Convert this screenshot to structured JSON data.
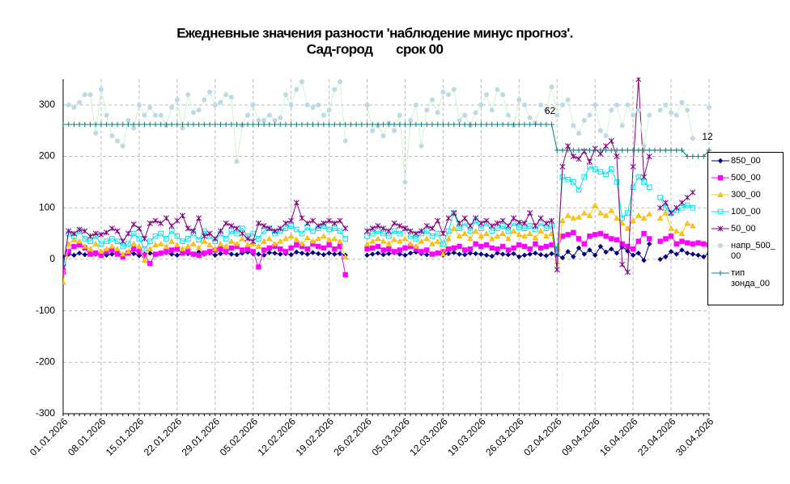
{
  "chart_data": {
    "type": "line",
    "title": "Ежедневные значения разности 'наблюдение минус прогноз'.",
    "subtitle": "Сад-город       срок 00",
    "annotations": [
      "62",
      "12"
    ],
    "categories": [
      "01.01.2026",
      null,
      null,
      null,
      null,
      null,
      null,
      "08.01.2026",
      null,
      null,
      null,
      null,
      null,
      null,
      "15.01.2026",
      null,
      null,
      null,
      null,
      null,
      null,
      "22.01.2026",
      null,
      null,
      null,
      null,
      null,
      null,
      "29.01.2026",
      null,
      null,
      null,
      null,
      null,
      null,
      "05.02.2026",
      null,
      null,
      null,
      null,
      null,
      null,
      "12.02.2026",
      null,
      null,
      null,
      null,
      null,
      null,
      "19.02.2026",
      null,
      null,
      null,
      null,
      null,
      null,
      "26.02.2026",
      null,
      null,
      null,
      null,
      null,
      null,
      "05.03.2026",
      null,
      null,
      null,
      null,
      null,
      null,
      "12.03.2026",
      null,
      null,
      null,
      null,
      null,
      null,
      "19.03.2026",
      null,
      null,
      null,
      null,
      null,
      null,
      "26.03.2026",
      null,
      null,
      null,
      null,
      null,
      null,
      "02.04.2026",
      null,
      null,
      null,
      null,
      null,
      null,
      "09.04.2026",
      null,
      null,
      null,
      null,
      null,
      null,
      "16.04.2026",
      null,
      null,
      null,
      null,
      null,
      null,
      "23.04.2026",
      null,
      null,
      null,
      null,
      null,
      null,
      "30.04.2026"
    ],
    "ylim": [
      -300,
      350
    ],
    "yticks": [
      -300,
      -200,
      -100,
      0,
      100,
      200,
      300
    ],
    "grid": true,
    "series": [
      {
        "name": "850_00",
        "color": "#000080",
        "marker": "diamond",
        "values": [
          5,
          10,
          8,
          12,
          9,
          11,
          10,
          13,
          8,
          10,
          12,
          9,
          14,
          11,
          7,
          10,
          12,
          9,
          11,
          13,
          10,
          8,
          12,
          11,
          9,
          14,
          10,
          12,
          8,
          11,
          13,
          10,
          9,
          12,
          14,
          11,
          10,
          8,
          13,
          12,
          10,
          11,
          9,
          14,
          12,
          10,
          13,
          11,
          9,
          12,
          10,
          11,
          8,
          null,
          null,
          null,
          8,
          10,
          12,
          9,
          11,
          13,
          10,
          8,
          12,
          14,
          11,
          9,
          10,
          12,
          8,
          11,
          13,
          10,
          9,
          12,
          11,
          10,
          8,
          6,
          12,
          10,
          9,
          11,
          5,
          8,
          10,
          12,
          9,
          7,
          11,
          8,
          3,
          15,
          5,
          22,
          10,
          18,
          8,
          25,
          14,
          20,
          12,
          24,
          16,
          8,
          12,
          -2,
          30,
          null,
          0,
          5,
          15,
          10,
          18,
          12,
          10,
          8,
          5,
          12
        ]
      },
      {
        "name": "500_00",
        "color": "#ff00ff",
        "marker": "square",
        "values": [
          -25,
          15,
          25,
          28,
          22,
          10,
          12,
          8,
          15,
          18,
          10,
          5,
          12,
          20,
          15,
          8,
          -8,
          10,
          12,
          15,
          18,
          20,
          12,
          15,
          10,
          8,
          12,
          15,
          18,
          20,
          15,
          22,
          25,
          18,
          20,
          15,
          -15,
          18,
          22,
          25,
          20,
          15,
          22,
          28,
          25,
          20,
          30,
          25,
          22,
          28,
          20,
          25,
          -30,
          null,
          null,
          null,
          20,
          22,
          25,
          18,
          20,
          15,
          18,
          22,
          25,
          20,
          15,
          18,
          10,
          12,
          15,
          20,
          22,
          25,
          18,
          20,
          30,
          25,
          28,
          22,
          20,
          25,
          18,
          22,
          28,
          25,
          20,
          30,
          22,
          25,
          28,
          20,
          45,
          48,
          52,
          40,
          30,
          45,
          48,
          50,
          45,
          40,
          38,
          30,
          25,
          20,
          35,
          50,
          40,
          null,
          35,
          40,
          45,
          30,
          35,
          32,
          30,
          32,
          30,
          28
        ]
      },
      {
        "name": "300_00",
        "color": "#ffcc00",
        "marker": "triangle",
        "values": [
          -45,
          30,
          38,
          35,
          25,
          20,
          30,
          15,
          20,
          25,
          20,
          10,
          15,
          30,
          25,
          -2,
          20,
          28,
          30,
          25,
          35,
          28,
          20,
          25,
          30,
          22,
          35,
          28,
          20,
          30,
          25,
          35,
          30,
          40,
          28,
          30,
          25,
          35,
          40,
          30,
          35,
          40,
          45,
          38,
          30,
          42,
          35,
          40,
          45,
          38,
          40,
          35,
          5,
          null,
          null,
          null,
          30,
          35,
          40,
          35,
          30,
          38,
          35,
          40,
          30,
          25,
          35,
          40,
          30,
          35,
          10,
          40,
          60,
          45,
          50,
          40,
          55,
          45,
          50,
          40,
          45,
          50,
          40,
          55,
          48,
          45,
          50,
          42,
          55,
          45,
          50,
          -5,
          75,
          85,
          80,
          82,
          90,
          85,
          105,
          90,
          85,
          95,
          80,
          70,
          60,
          75,
          85,
          80,
          88,
          null,
          80,
          90,
          60,
          55,
          50,
          70,
          65,
          null,
          null,
          null
        ]
      },
      {
        "name": "100_00",
        "color": "#00e5ee",
        "marker": "open-square",
        "values": [
          -10,
          50,
          45,
          55,
          40,
          35,
          45,
          30,
          35,
          40,
          35,
          25,
          30,
          50,
          40,
          20,
          35,
          45,
          50,
          40,
          55,
          45,
          35,
          40,
          50,
          38,
          55,
          45,
          35,
          50,
          40,
          55,
          50,
          60,
          45,
          50,
          40,
          55,
          60,
          50,
          55,
          60,
          65,
          58,
          50,
          62,
          55,
          60,
          65,
          58,
          60,
          55,
          40,
          null,
          null,
          null,
          45,
          50,
          55,
          50,
          45,
          55,
          50,
          60,
          45,
          40,
          50,
          55,
          45,
          50,
          30,
          55,
          90,
          60,
          70,
          55,
          75,
          60,
          70,
          55,
          60,
          65,
          55,
          70,
          62,
          60,
          65,
          58,
          70,
          60,
          65,
          10,
          160,
          155,
          150,
          135,
          160,
          180,
          175,
          170,
          165,
          175,
          150,
          80,
          90,
          140,
          160,
          150,
          140,
          null,
          120,
          100,
          90,
          95,
          100,
          105,
          100,
          null,
          null,
          null
        ]
      },
      {
        "name": "50_00",
        "color": "#800080",
        "marker": "star",
        "values": [
          -15,
          55,
          50,
          58,
          55,
          45,
          50,
          48,
          52,
          60,
          55,
          35,
          50,
          68,
          60,
          40,
          70,
          75,
          70,
          80,
          65,
          75,
          85,
          60,
          55,
          80,
          45,
          50,
          40,
          55,
          70,
          65,
          60,
          50,
          40,
          35,
          70,
          65,
          60,
          55,
          60,
          70,
          75,
          110,
          80,
          70,
          75,
          65,
          70,
          75,
          70,
          75,
          60,
          null,
          null,
          null,
          55,
          60,
          65,
          60,
          55,
          70,
          65,
          60,
          55,
          50,
          55,
          65,
          60,
          75,
          50,
          80,
          90,
          70,
          80,
          65,
          80,
          70,
          75,
          65,
          70,
          75,
          65,
          80,
          72,
          70,
          90,
          65,
          80,
          70,
          75,
          -20,
          180,
          220,
          200,
          195,
          210,
          190,
          215,
          205,
          220,
          230,
          200,
          -10,
          -25,
          180,
          350,
          160,
          200,
          null,
          100,
          110,
          90,
          100,
          110,
          120,
          130,
          null,
          null,
          null
        ]
      },
      {
        "name": "напр_500_00",
        "color": "#bcd9e6",
        "line_color": "#ccf5cc",
        "marker": "circle",
        "values": [
          null,
          300,
          295,
          305,
          320,
          320,
          245,
          330,
          280,
          240,
          230,
          220,
          270,
          255,
          300,
          280,
          295,
          280,
          280,
          260,
          295,
          310,
          255,
          320,
          285,
          290,
          310,
          325,
          300,
          305,
          320,
          315,
          190,
          260,
          280,
          300,
          270,
          270,
          280,
          270,
          275,
          320,
          300,
          330,
          345,
          300,
          295,
          300,
          280,
          290,
          330,
          345,
          230,
          null,
          null,
          null,
          300,
          250,
          260,
          240,
          265,
          250,
          280,
          150,
          270,
          300,
          220,
          290,
          310,
          285,
          325,
          320,
          330,
          270,
          280,
          260,
          285,
          300,
          320,
          290,
          330,
          320,
          280,
          260,
          310,
          300,
          275,
          265,
          300,
          290,
          335,
          280,
          300,
          310,
          260,
          245,
          270,
          280,
          300,
          250,
          240,
          290,
          300,
          260,
          300,
          280,
          290,
          220,
          280,
          null,
          290,
          300,
          285,
          280,
          305,
          290,
          235,
          null,
          null,
          295
        ]
      },
      {
        "name": "тип зонда_00",
        "color": "#008080",
        "marker": "plus",
        "values": [
          262,
          262,
          262,
          262,
          262,
          262,
          262,
          262,
          262,
          262,
          262,
          262,
          262,
          262,
          262,
          262,
          262,
          262,
          262,
          262,
          262,
          262,
          262,
          262,
          262,
          262,
          262,
          262,
          262,
          262,
          262,
          262,
          262,
          262,
          262,
          262,
          262,
          262,
          262,
          262,
          262,
          262,
          262,
          262,
          262,
          262,
          262,
          262,
          262,
          262,
          262,
          262,
          262,
          262,
          262,
          262,
          262,
          262,
          262,
          262,
          262,
          262,
          262,
          262,
          262,
          262,
          262,
          262,
          262,
          262,
          262,
          262,
          262,
          262,
          262,
          262,
          262,
          262,
          262,
          262,
          262,
          262,
          262,
          262,
          262,
          262,
          262,
          262,
          262,
          262,
          262,
          212,
          212,
          212,
          212,
          212,
          212,
          212,
          212,
          212,
          212,
          212,
          212,
          212,
          212,
          212,
          212,
          212,
          212,
          212,
          212,
          212,
          212,
          212,
          212,
          200,
          200,
          200,
          200,
          212
        ]
      }
    ]
  }
}
